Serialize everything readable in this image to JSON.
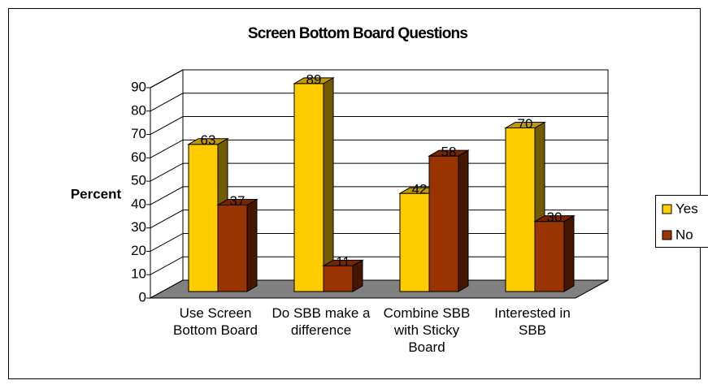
{
  "chart_data": {
    "type": "bar3d",
    "title": "Screen Bottom Board Questions",
    "y_label": "Percent",
    "categories": [
      "Use Screen Bottom Board",
      "Do SBB make a difference",
      "Combine SBB with Sticky Board",
      "Interested in SBB"
    ],
    "series": [
      {
        "name": "Yes",
        "color": "#FFCC00",
        "values": [
          63,
          89,
          42,
          70
        ]
      },
      {
        "name": "No",
        "color": "#993300",
        "values": [
          37,
          11,
          58,
          30
        ]
      }
    ],
    "ylim": [
      0,
      90
    ],
    "yticks": [
      0,
      10,
      20,
      30,
      40,
      50,
      60,
      70,
      80,
      90
    ],
    "grid": true,
    "legend": "right"
  }
}
